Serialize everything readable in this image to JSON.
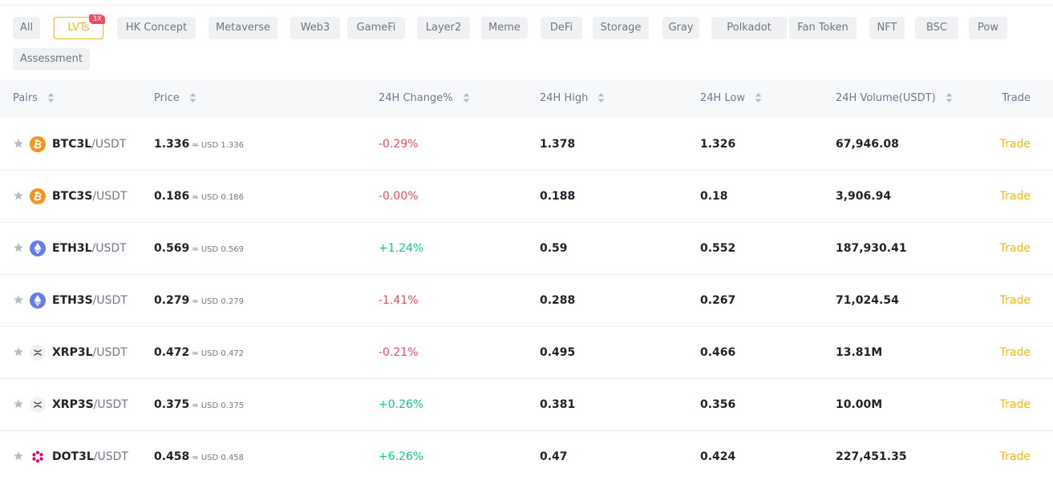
{
  "filters": [
    {
      "label": "All"
    },
    {
      "label": "LVTs",
      "badge": "3X",
      "active": true
    },
    {
      "label": "HK Concept"
    },
    {
      "label": "Metaverse"
    },
    {
      "label": "Web3"
    },
    {
      "label": "GameFi"
    },
    {
      "label": "Layer2"
    },
    {
      "label": "Meme"
    },
    {
      "label": "DeFi"
    },
    {
      "label": "Storage"
    },
    {
      "label": "Gray"
    },
    {
      "label": "Polkadot"
    },
    {
      "label": "Fan Token"
    },
    {
      "label": "NFT"
    },
    {
      "label": "BSC"
    },
    {
      "label": "Pow"
    },
    {
      "label": "Assessment"
    }
  ],
  "table": {
    "columns": {
      "pairs": "Pairs",
      "price": "Price",
      "change": "24H Change%",
      "high": "24H High",
      "low": "24H Low",
      "volume": "24H Volume(USDT)",
      "trade": "Trade"
    },
    "rows": [
      {
        "icon": "btc-icon",
        "base": "BTC3L",
        "quote": "/USDT",
        "price": "1.336",
        "usd": "≈ USD 1.336",
        "change": "-0.29%",
        "dir": "neg",
        "high": "1.378",
        "low": "1.326",
        "volume": "67,946.08",
        "trade": "Trade"
      },
      {
        "icon": "btc-icon",
        "base": "BTC3S",
        "quote": "/USDT",
        "price": "0.186",
        "usd": "≈ USD 0.186",
        "change": "-0.00%",
        "dir": "neg",
        "high": "0.188",
        "low": "0.18",
        "volume": "3,906.94",
        "trade": "Trade"
      },
      {
        "icon": "eth-icon",
        "base": "ETH3L",
        "quote": "/USDT",
        "price": "0.569",
        "usd": "≈ USD 0.569",
        "change": "+1.24%",
        "dir": "pos",
        "high": "0.59",
        "low": "0.552",
        "volume": "187,930.41",
        "trade": "Trade"
      },
      {
        "icon": "eth-icon",
        "base": "ETH3S",
        "quote": "/USDT",
        "price": "0.279",
        "usd": "≈ USD 0.279",
        "change": "-1.41%",
        "dir": "neg",
        "high": "0.288",
        "low": "0.267",
        "volume": "71,024.54",
        "trade": "Trade"
      },
      {
        "icon": "xrp-icon",
        "base": "XRP3L",
        "quote": "/USDT",
        "price": "0.472",
        "usd": "≈ USD 0.472",
        "change": "-0.21%",
        "dir": "neg",
        "high": "0.495",
        "low": "0.466",
        "volume": "13.81M",
        "trade": "Trade"
      },
      {
        "icon": "xrp-icon",
        "base": "XRP3S",
        "quote": "/USDT",
        "price": "0.375",
        "usd": "≈ USD 0.375",
        "change": "+0.26%",
        "dir": "pos",
        "high": "0.381",
        "low": "0.356",
        "volume": "10.00M",
        "trade": "Trade"
      },
      {
        "icon": "dot-icon",
        "base": "DOT3L",
        "quote": "/USDT",
        "price": "0.458",
        "usd": "≈ USD 0.458",
        "change": "+6.26%",
        "dir": "pos",
        "high": "0.47",
        "low": "0.424",
        "volume": "227,451.35",
        "trade": "Trade"
      }
    ]
  },
  "colors": {
    "accent": "#f0b90b",
    "negative": "#f6465d",
    "positive": "#0ecb81",
    "btc": "#f7931a",
    "eth": "#627eea",
    "dot": "#e6007a"
  }
}
